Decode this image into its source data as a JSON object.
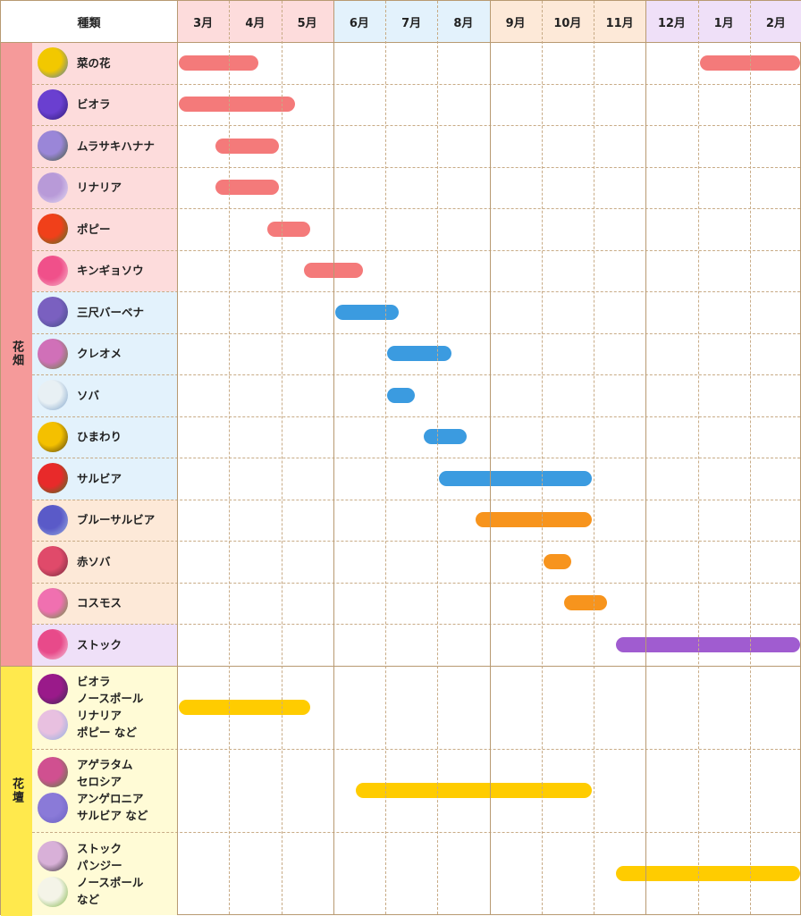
{
  "header": {
    "type_label": "種類",
    "months": [
      "3月",
      "4月",
      "5月",
      "6月",
      "7月",
      "8月",
      "9月",
      "10月",
      "11月",
      "12月",
      "1月",
      "2月"
    ]
  },
  "colors": {
    "month_header": [
      "#fddcdc",
      "#fddcdc",
      "#fddcdc",
      "#e3f2fc",
      "#e3f2fc",
      "#e3f2fc",
      "#fde9d8",
      "#fde9d8",
      "#fde9d8",
      "#efe0f8",
      "#efe0f8",
      "#efe0f8"
    ],
    "pink_bar": "#f47a7a",
    "blue_bar": "#3b9be0",
    "orange_bar": "#f7941d",
    "purple_bar": "#a05cd0",
    "yellow_bar": "#ffcc00"
  },
  "categories": [
    {
      "label": "花畑",
      "color": "#f59a9a"
    },
    {
      "label": "花壇",
      "color": "#ffe94d"
    }
  ],
  "chart_data": {
    "type": "gantt",
    "title": "",
    "x_axis": "month (0 = start of 3月, 12 = end of 2月)",
    "rows": [
      {
        "category": 0,
        "name": "菜の花",
        "bg": "#fddcdc",
        "bar": "#f47a7a",
        "photo": [
          "#f2c800",
          "#4a79b8"
        ],
        "bars": [
          [
            0,
            1.6
          ],
          [
            10,
            12
          ]
        ]
      },
      {
        "category": 0,
        "name": "ビオラ",
        "bg": "#fddcdc",
        "bar": "#f47a7a",
        "photo": [
          "#6a3fd0",
          "#2b1a70"
        ],
        "bars": [
          [
            0,
            2.3
          ]
        ]
      },
      {
        "category": 0,
        "name": "ムラサキハナナ",
        "bg": "#fddcdc",
        "bar": "#f47a7a",
        "photo": [
          "#9a86d8",
          "#3e5a2e"
        ],
        "bars": [
          [
            0.7,
            2.0
          ]
        ]
      },
      {
        "category": 0,
        "name": "リナリア",
        "bg": "#fddcdc",
        "bar": "#f47a7a",
        "photo": [
          "#b89ad8",
          "#e8e0f4"
        ],
        "bars": [
          [
            0.7,
            2.0
          ]
        ]
      },
      {
        "category": 0,
        "name": "ポピー",
        "bg": "#fddcdc",
        "bar": "#f47a7a",
        "photo": [
          "#f0401a",
          "#3f7a2a"
        ],
        "bars": [
          [
            1.7,
            2.6
          ]
        ]
      },
      {
        "category": 0,
        "name": "キンギョソウ",
        "bg": "#fddcdc",
        "bar": "#f47a7a",
        "photo": [
          "#f0508a",
          "#f4c0d0"
        ],
        "bars": [
          [
            2.4,
            3.6
          ]
        ]
      },
      {
        "category": 0,
        "name": "三尺バーベナ",
        "bg": "#e3f2fc",
        "bar": "#3b9be0",
        "photo": [
          "#7a60c0",
          "#3e4a80"
        ],
        "bars": [
          [
            3.0,
            4.3
          ]
        ]
      },
      {
        "category": 0,
        "name": "クレオメ",
        "bg": "#e3f2fc",
        "bar": "#3b9be0",
        "photo": [
          "#d070b8",
          "#5a8a3a"
        ],
        "bars": [
          [
            4.0,
            5.3
          ]
        ]
      },
      {
        "category": 0,
        "name": "ソバ",
        "bg": "#e3f2fc",
        "bar": "#3b9be0",
        "photo": [
          "#e8f0f4",
          "#7aa0c8"
        ],
        "bars": [
          [
            4.0,
            4.6
          ]
        ]
      },
      {
        "category": 0,
        "name": "ひまわり",
        "bg": "#e3f2fc",
        "bar": "#3b9be0",
        "photo": [
          "#f4c000",
          "#4a3a10"
        ],
        "bars": [
          [
            4.7,
            5.6
          ]
        ]
      },
      {
        "category": 0,
        "name": "サルビア",
        "bg": "#e3f2fc",
        "bar": "#3b9be0",
        "photo": [
          "#e82a2a",
          "#3a7a2a"
        ],
        "bars": [
          [
            5.0,
            8.0
          ]
        ]
      },
      {
        "category": 0,
        "name": "ブルーサルビア",
        "bg": "#fde9d8",
        "bar": "#f7941d",
        "photo": [
          "#5a5ac8",
          "#9ab0e0"
        ],
        "bars": [
          [
            5.7,
            8.0
          ]
        ]
      },
      {
        "category": 0,
        "name": "赤ソバ",
        "bg": "#fde9d8",
        "bar": "#f7941d",
        "photo": [
          "#e04a6a",
          "#6a2a3a"
        ],
        "bars": [
          [
            7.0,
            7.6
          ]
        ]
      },
      {
        "category": 0,
        "name": "コスモス",
        "bg": "#fde9d8",
        "bar": "#f7941d",
        "photo": [
          "#f070b0",
          "#5a9a3a"
        ],
        "bars": [
          [
            7.4,
            8.3
          ]
        ]
      },
      {
        "category": 0,
        "name": "ストック",
        "bg": "#efe0f8",
        "bar": "#a05cd0",
        "photo": [
          "#e84a8a",
          "#f4d0e0"
        ],
        "bars": [
          [
            8.4,
            12
          ]
        ]
      }
    ],
    "bed_rows": [
      {
        "category": 1,
        "lines": [
          "ビオラ",
          "ノースポール",
          "リナリア",
          "ポピー など"
        ],
        "bg": "#fffbd6",
        "bar": "#ffcc00",
        "photos": [
          [
            "#9a1a8a",
            "#3a2a50"
          ],
          [
            "#e8c0e0",
            "#8ab0e0"
          ]
        ],
        "bars": [
          [
            0,
            2.6
          ]
        ]
      },
      {
        "category": 1,
        "lines": [
          "アゲラタム",
          "セロシア",
          "アンゲロニア",
          "サルビア など"
        ],
        "bg": "#fffbd6",
        "bar": "#ffcc00",
        "photos": [
          [
            "#d05090",
            "#4a8a3a"
          ],
          [
            "#8a7ad8",
            "#6a60c0"
          ]
        ],
        "bars": [
          [
            3.4,
            8.0
          ]
        ]
      },
      {
        "category": 1,
        "lines": [
          "ストック",
          "パンジー",
          "ノースポール",
          "など"
        ],
        "bg": "#fffbd6",
        "bar": "#ffcc00",
        "photos": [
          [
            "#d8b0d8",
            "#2a2a2a"
          ],
          [
            "#f4f4e8",
            "#7ab040"
          ]
        ],
        "bars": [
          [
            8.4,
            12
          ]
        ]
      }
    ]
  }
}
